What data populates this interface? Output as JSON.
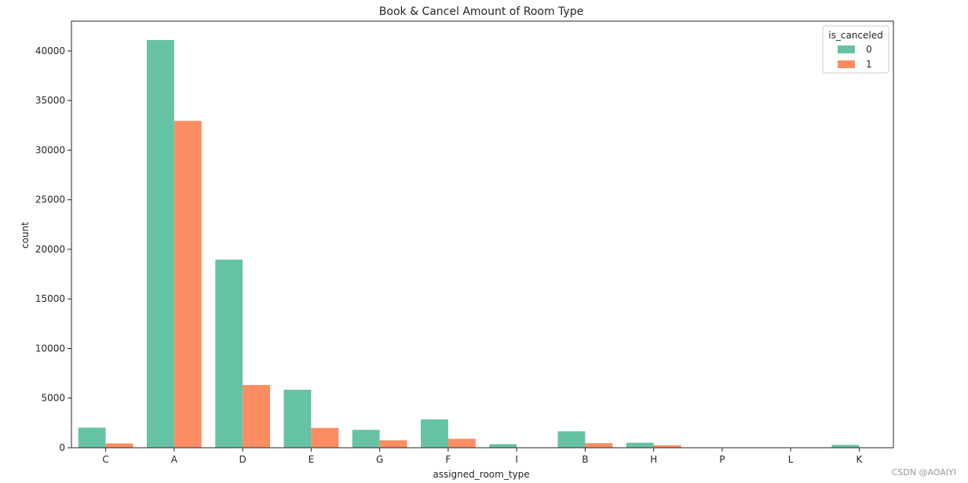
{
  "chart_data": {
    "type": "bar",
    "title": "Book & Cancel Amount of Room Type",
    "xlabel": "assigned_room_type",
    "ylabel": "count",
    "categories": [
      "C",
      "A",
      "D",
      "E",
      "G",
      "F",
      "I",
      "B",
      "H",
      "P",
      "L",
      "K"
    ],
    "series": [
      {
        "name": "0",
        "color": "#66c2a5",
        "values": [
          2020,
          41100,
          18960,
          5840,
          1800,
          2860,
          360,
          1650,
          500,
          0,
          0,
          280
        ]
      },
      {
        "name": "1",
        "color": "#fc8d62",
        "values": [
          440,
          32950,
          6320,
          1990,
          750,
          900,
          0,
          460,
          250,
          10,
          0,
          0
        ]
      }
    ],
    "ylim": [
      0,
      43000
    ],
    "yticks": [
      0,
      5000,
      10000,
      15000,
      20000,
      25000,
      30000,
      35000,
      40000
    ],
    "grid": false,
    "legend": {
      "title": "is_canceled",
      "placement": "top-right"
    }
  },
  "watermark": "CSDN @AOAIYI"
}
